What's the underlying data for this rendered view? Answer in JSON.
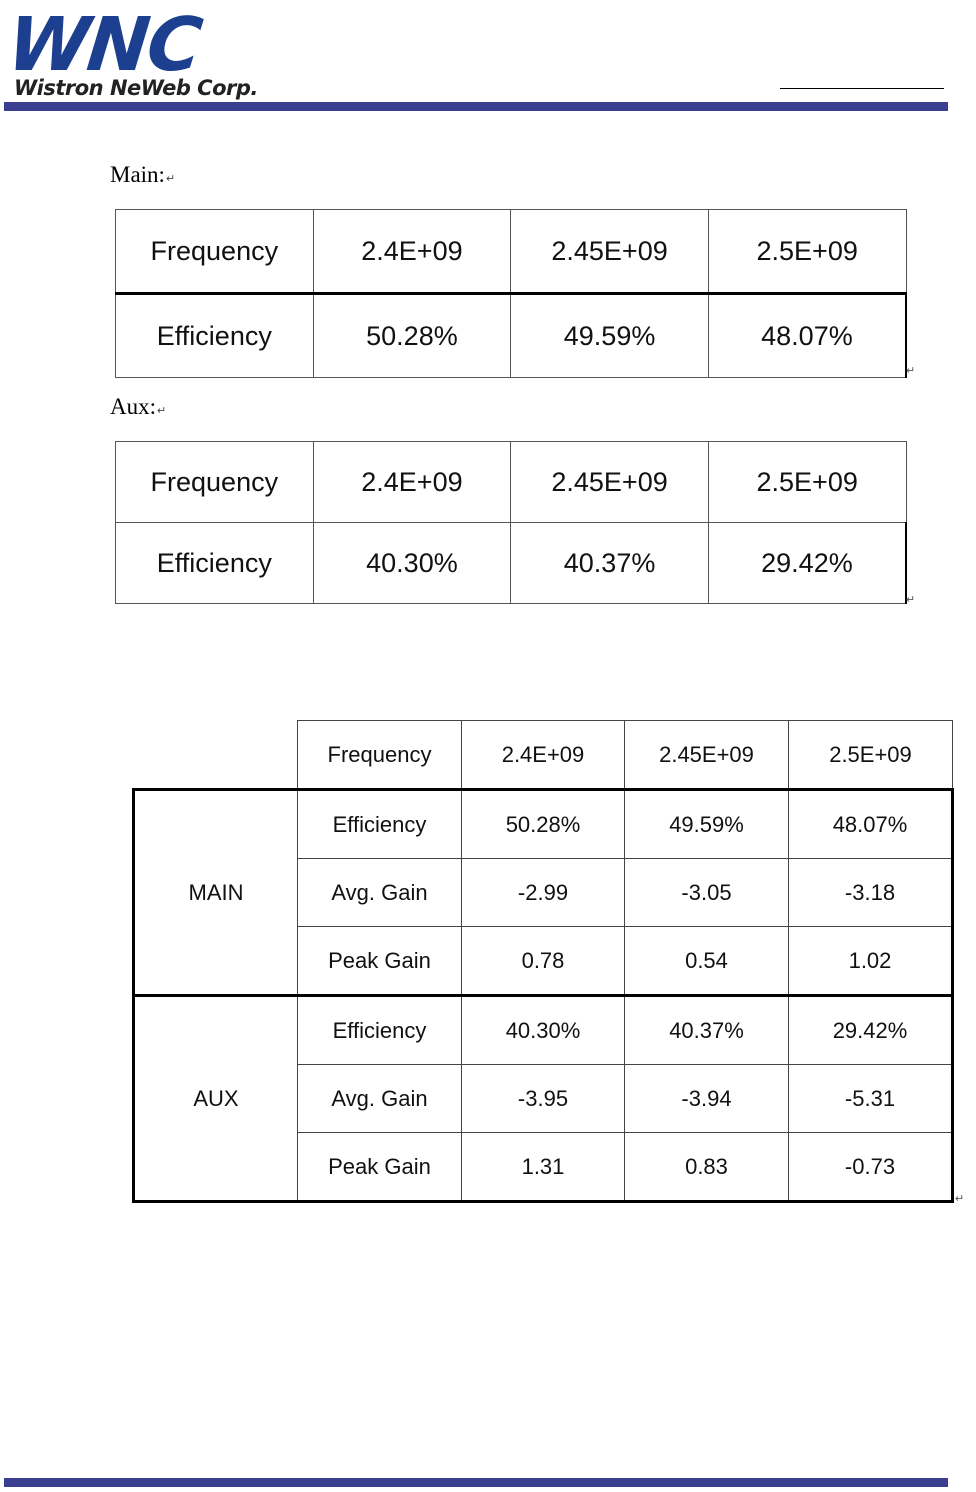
{
  "header": {
    "logo_text": "WNC",
    "company_name": "Wistron NeWeb Corp.",
    "brand_color": "#3a3f8f"
  },
  "main_section": {
    "label": "Main:",
    "row_labels": [
      "Frequency",
      "Efficiency"
    ],
    "frequencies": [
      "2.4E+09",
      "2.45E+09",
      "2.5E+09"
    ],
    "efficiencies": [
      "50.28%",
      "49.59%",
      "48.07%"
    ]
  },
  "aux_section": {
    "label": "Aux:",
    "row_labels": [
      "Frequency",
      "Efficiency"
    ],
    "frequencies": [
      "2.4E+09",
      "2.45E+09",
      "2.5E+09"
    ],
    "efficiencies": [
      "40.30%",
      "40.37%",
      "29.42%"
    ]
  },
  "summary_table": {
    "header": [
      "Frequency",
      "2.4E+09",
      "2.45E+09",
      "2.5E+09"
    ],
    "groups": [
      {
        "name": "MAIN",
        "rows": [
          {
            "label": "Efficiency",
            "values": [
              "50.28%",
              "49.59%",
              "48.07%"
            ]
          },
          {
            "label": "Avg. Gain",
            "values": [
              "-2.99",
              "-3.05",
              "-3.18"
            ]
          },
          {
            "label": "Peak Gain",
            "values": [
              "0.78",
              "0.54",
              "1.02"
            ]
          }
        ]
      },
      {
        "name": "AUX",
        "rows": [
          {
            "label": "Efficiency",
            "values": [
              "40.30%",
              "40.37%",
              "29.42%"
            ]
          },
          {
            "label": "Avg. Gain",
            "values": [
              "-3.95",
              "-3.94",
              "-5.31"
            ]
          },
          {
            "label": "Peak Gain",
            "values": [
              "1.31",
              "0.83",
              "-0.73"
            ]
          }
        ]
      }
    ]
  }
}
